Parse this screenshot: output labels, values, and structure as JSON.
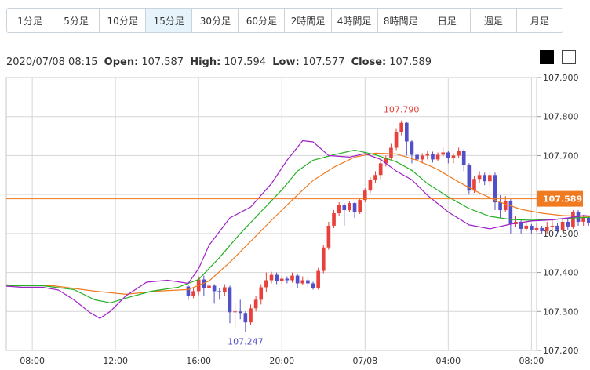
{
  "tabs": [
    {
      "label": "1分足",
      "active": false
    },
    {
      "label": "5分足",
      "active": false
    },
    {
      "label": "10分足",
      "active": false
    },
    {
      "label": "15分足",
      "active": true
    },
    {
      "label": "30分足",
      "active": false
    },
    {
      "label": "60分足",
      "active": false
    },
    {
      "label": "2時間足",
      "active": false
    },
    {
      "label": "4時間足",
      "active": false
    },
    {
      "label": "8時間足",
      "active": false
    },
    {
      "label": "日足",
      "active": false
    },
    {
      "label": "週足",
      "active": false
    },
    {
      "label": "月足",
      "active": false
    }
  ],
  "ohlc": {
    "datetime": "2020/07/08 08:15",
    "open_label": "Open:",
    "open": "107.587",
    "high_label": "High:",
    "high": "107.594",
    "low_label": "Low:",
    "low": "107.577",
    "close_label": "Close:",
    "close": "107.589"
  },
  "colors": {
    "up": "#e8403a",
    "down": "#5250c8",
    "ma_short": "#a020c8",
    "ma_mid": "#22b022",
    "ma_long": "#f07a20",
    "current": "#f07a20",
    "grid": "#d6d6d6"
  },
  "chart_data": {
    "type": "candlestick",
    "ylim": [
      107.2,
      107.9
    ],
    "y_ticks": [
      "107.900",
      "107.800",
      "107.700",
      "107.600",
      "107.500",
      "107.400",
      "107.300",
      "107.200"
    ],
    "x_ticks": [
      {
        "label": "08:00",
        "t": 0
      },
      {
        "label": "12:00",
        "t": 4
      },
      {
        "label": "16:00",
        "t": 8
      },
      {
        "label": "20:00",
        "t": 12
      },
      {
        "label": "07/08",
        "t": 16
      },
      {
        "label": "04:00",
        "t": 20
      },
      {
        "label": "08:00",
        "t": 24
      }
    ],
    "x_range_hours": [
      -1.25,
      24.25
    ],
    "current_price": 107.589,
    "current_label": "107.589",
    "max_label": "107.790",
    "min_label": "107.247",
    "candles": [
      [
        107.364,
        107.34,
        107.368,
        107.33
      ],
      [
        107.34,
        107.352,
        107.36,
        107.334
      ],
      [
        107.352,
        107.382,
        107.39,
        107.342
      ],
      [
        107.382,
        107.36,
        107.392,
        107.34
      ],
      [
        107.36,
        107.366,
        107.38,
        107.35
      ],
      [
        107.366,
        107.352,
        107.37,
        107.32
      ],
      [
        107.352,
        107.35,
        107.36,
        107.33
      ],
      [
        107.35,
        107.362,
        107.37,
        107.34
      ],
      [
        107.362,
        107.298,
        107.366,
        107.27
      ],
      [
        107.298,
        107.3,
        107.32,
        107.26
      ],
      [
        107.3,
        107.296,
        107.33,
        107.28
      ],
      [
        107.296,
        107.272,
        107.3,
        107.247
      ],
      [
        107.272,
        107.308,
        107.318,
        107.266
      ],
      [
        107.308,
        107.33,
        107.34,
        107.3
      ],
      [
        107.33,
        107.362,
        107.37,
        107.318
      ],
      [
        107.362,
        107.38,
        107.4,
        107.35
      ],
      [
        107.38,
        107.394,
        107.402,
        107.372
      ],
      [
        107.394,
        107.378,
        107.4,
        107.37
      ],
      [
        107.378,
        107.384,
        107.392,
        107.37
      ],
      [
        107.384,
        107.38,
        107.39,
        107.372
      ],
      [
        107.38,
        107.392,
        107.4,
        107.374
      ],
      [
        107.392,
        107.372,
        107.396,
        107.36
      ],
      [
        107.372,
        107.38,
        107.39,
        107.368
      ],
      [
        107.38,
        107.372,
        107.388,
        107.36
      ],
      [
        107.372,
        107.36,
        107.376,
        107.356
      ],
      [
        107.36,
        107.404,
        107.412,
        107.356
      ],
      [
        107.404,
        107.464,
        107.47,
        107.398
      ],
      [
        107.464,
        107.52,
        107.53,
        107.458
      ],
      [
        107.52,
        107.552,
        107.56,
        107.514
      ],
      [
        107.552,
        107.574,
        107.58,
        107.546
      ],
      [
        107.574,
        107.56,
        107.578,
        107.52
      ],
      [
        107.56,
        107.578,
        107.582,
        107.556
      ],
      [
        107.578,
        107.556,
        107.58,
        107.54
      ],
      [
        107.556,
        107.586,
        107.59,
        107.55
      ],
      [
        107.586,
        107.61,
        107.616,
        107.58
      ],
      [
        107.61,
        107.638,
        107.644,
        107.604
      ],
      [
        107.638,
        107.65,
        107.66,
        107.63
      ],
      [
        107.65,
        107.68,
        107.69,
        107.64
      ],
      [
        107.68,
        107.694,
        107.7,
        107.672
      ],
      [
        107.694,
        107.72,
        107.73,
        107.69
      ],
      [
        107.72,
        107.76,
        107.77,
        107.714
      ],
      [
        107.76,
        107.784,
        107.79,
        107.752
      ],
      [
        107.784,
        107.736,
        107.786,
        107.7
      ],
      [
        107.736,
        107.702,
        107.74,
        107.68
      ],
      [
        107.702,
        107.69,
        107.708,
        107.68
      ],
      [
        107.69,
        107.7,
        107.706,
        107.68
      ],
      [
        107.7,
        107.704,
        107.712,
        107.69
      ],
      [
        107.704,
        107.69,
        107.71,
        107.682
      ],
      [
        107.69,
        107.702,
        107.708,
        107.686
      ],
      [
        107.702,
        107.708,
        107.72,
        107.696
      ],
      [
        107.708,
        107.694,
        107.712,
        107.68
      ],
      [
        107.694,
        107.7,
        107.706,
        107.68
      ],
      [
        107.7,
        107.712,
        107.72,
        107.694
      ],
      [
        107.712,
        107.676,
        107.716,
        107.66
      ],
      [
        107.676,
        107.61,
        107.68,
        107.6
      ],
      [
        107.61,
        107.64,
        107.648,
        107.604
      ],
      [
        107.64,
        107.65,
        107.66,
        107.63
      ],
      [
        107.65,
        107.634,
        107.656,
        107.624
      ],
      [
        107.634,
        107.65,
        107.656,
        107.62
      ],
      [
        107.65,
        107.58,
        107.656,
        107.56
      ],
      [
        107.58,
        107.56,
        107.598,
        107.54
      ],
      [
        107.56,
        107.584,
        107.596,
        107.554
      ],
      [
        107.584,
        107.524,
        107.588,
        107.5
      ],
      [
        107.524,
        107.53,
        107.546,
        107.516
      ],
      [
        107.53,
        107.512,
        107.536,
        107.5
      ],
      [
        107.512,
        107.52,
        107.53,
        107.505
      ],
      [
        107.52,
        107.508,
        107.524,
        107.5
      ],
      [
        107.508,
        107.514,
        107.526,
        107.504
      ],
      [
        107.514,
        107.506,
        107.52,
        107.498
      ],
      [
        107.506,
        107.518,
        107.53,
        107.5
      ],
      [
        107.518,
        107.52,
        107.536,
        107.51
      ],
      [
        107.52,
        107.51,
        107.526,
        107.5
      ],
      [
        107.51,
        107.53,
        107.54,
        107.504
      ],
      [
        107.53,
        107.518,
        107.536,
        107.51
      ],
      [
        107.518,
        107.556,
        107.56,
        107.512
      ],
      [
        107.556,
        107.53,
        107.56,
        107.52
      ],
      [
        107.53,
        107.54,
        107.548,
        107.52
      ],
      [
        107.54,
        107.528,
        107.546,
        107.52
      ],
      [
        107.528,
        107.534,
        107.54,
        107.52
      ],
      [
        107.534,
        107.53,
        107.54,
        107.524
      ],
      [
        107.53,
        107.55,
        107.556,
        107.526
      ],
      [
        107.55,
        107.534,
        107.556,
        107.526
      ],
      [
        107.534,
        107.548,
        107.552,
        107.53
      ],
      [
        107.548,
        107.53,
        107.552,
        107.52
      ],
      [
        107.53,
        107.512,
        107.536,
        107.5
      ],
      [
        107.512,
        107.53,
        107.54,
        107.506
      ],
      [
        107.53,
        107.54,
        107.55,
        107.524
      ],
      [
        107.54,
        107.548,
        107.556,
        107.53
      ],
      [
        107.548,
        107.56,
        107.566,
        107.54
      ],
      [
        107.56,
        107.57,
        107.576,
        107.552
      ],
      [
        107.57,
        107.589,
        107.594,
        107.564
      ]
    ],
    "ma_short_points": [
      [
        -1.25,
        107.365
      ],
      [
        -0.5,
        107.362
      ],
      [
        0.5,
        107.362
      ],
      [
        1.25,
        107.355
      ],
      [
        2.0,
        107.33
      ],
      [
        2.75,
        107.298
      ],
      [
        3.25,
        107.282
      ],
      [
        3.75,
        107.3
      ],
      [
        4.5,
        107.34
      ],
      [
        5.5,
        107.375
      ],
      [
        6.5,
        107.38
      ],
      [
        7.5,
        107.372
      ],
      [
        8.0,
        107.41
      ],
      [
        8.5,
        107.47
      ],
      [
        9.5,
        107.54
      ],
      [
        10.5,
        107.568
      ],
      [
        11.5,
        107.628
      ],
      [
        12.25,
        107.688
      ],
      [
        13.0,
        107.738
      ],
      [
        13.5,
        107.735
      ],
      [
        14.25,
        107.7
      ],
      [
        15.25,
        107.696
      ],
      [
        16.0,
        107.705
      ],
      [
        16.75,
        107.69
      ],
      [
        17.5,
        107.66
      ],
      [
        18.25,
        107.638
      ],
      [
        19.0,
        107.598
      ],
      [
        20.0,
        107.555
      ],
      [
        21.0,
        107.522
      ],
      [
        22.0,
        107.512
      ],
      [
        23.0,
        107.524
      ],
      [
        24.0,
        107.532
      ],
      [
        25.0,
        107.535
      ],
      [
        25.75,
        107.54
      ],
      [
        26.5,
        107.546
      ],
      [
        27.25,
        107.544
      ],
      [
        28.0,
        107.55
      ],
      [
        28.75,
        107.562
      ],
      [
        29.5,
        107.572
      ],
      [
        30.0,
        107.582
      ]
    ],
    "ma_mid_points": [
      [
        -1.25,
        107.366
      ],
      [
        0.5,
        107.366
      ],
      [
        2.0,
        107.356
      ],
      [
        3.0,
        107.33
      ],
      [
        3.75,
        107.322
      ],
      [
        4.75,
        107.338
      ],
      [
        5.75,
        107.352
      ],
      [
        7.0,
        107.362
      ],
      [
        8.0,
        107.382
      ],
      [
        9.0,
        107.438
      ],
      [
        10.0,
        107.5
      ],
      [
        11.0,
        107.556
      ],
      [
        12.0,
        107.612
      ],
      [
        12.75,
        107.66
      ],
      [
        13.5,
        107.688
      ],
      [
        14.5,
        107.702
      ],
      [
        15.5,
        107.714
      ],
      [
        16.5,
        107.702
      ],
      [
        17.5,
        107.684
      ],
      [
        18.25,
        107.662
      ],
      [
        19.0,
        107.628
      ],
      [
        20.0,
        107.594
      ],
      [
        21.0,
        107.564
      ],
      [
        22.0,
        107.544
      ],
      [
        23.0,
        107.536
      ],
      [
        24.0,
        107.534
      ],
      [
        25.0,
        107.536
      ],
      [
        26.0,
        107.54
      ],
      [
        27.0,
        107.542
      ],
      [
        28.0,
        107.544
      ],
      [
        29.0,
        107.549
      ],
      [
        30.0,
        107.554
      ]
    ],
    "ma_long_points": [
      [
        -1.25,
        107.368
      ],
      [
        1.0,
        107.366
      ],
      [
        3.0,
        107.352
      ],
      [
        4.5,
        107.344
      ],
      [
        6.0,
        107.352
      ],
      [
        7.5,
        107.356
      ],
      [
        8.5,
        107.378
      ],
      [
        9.5,
        107.426
      ],
      [
        10.5,
        107.48
      ],
      [
        11.5,
        107.534
      ],
      [
        12.5,
        107.586
      ],
      [
        13.5,
        107.636
      ],
      [
        14.5,
        107.67
      ],
      [
        15.5,
        107.696
      ],
      [
        16.5,
        107.706
      ],
      [
        17.5,
        107.704
      ],
      [
        18.5,
        107.688
      ],
      [
        19.5,
        107.664
      ],
      [
        20.5,
        107.632
      ],
      [
        21.5,
        107.604
      ],
      [
        22.5,
        107.58
      ],
      [
        23.5,
        107.562
      ],
      [
        24.5,
        107.552
      ],
      [
        25.5,
        107.546
      ],
      [
        26.5,
        107.544
      ],
      [
        27.5,
        107.543
      ],
      [
        28.5,
        107.544
      ],
      [
        29.5,
        107.548
      ],
      [
        30.0,
        107.55
      ]
    ]
  }
}
